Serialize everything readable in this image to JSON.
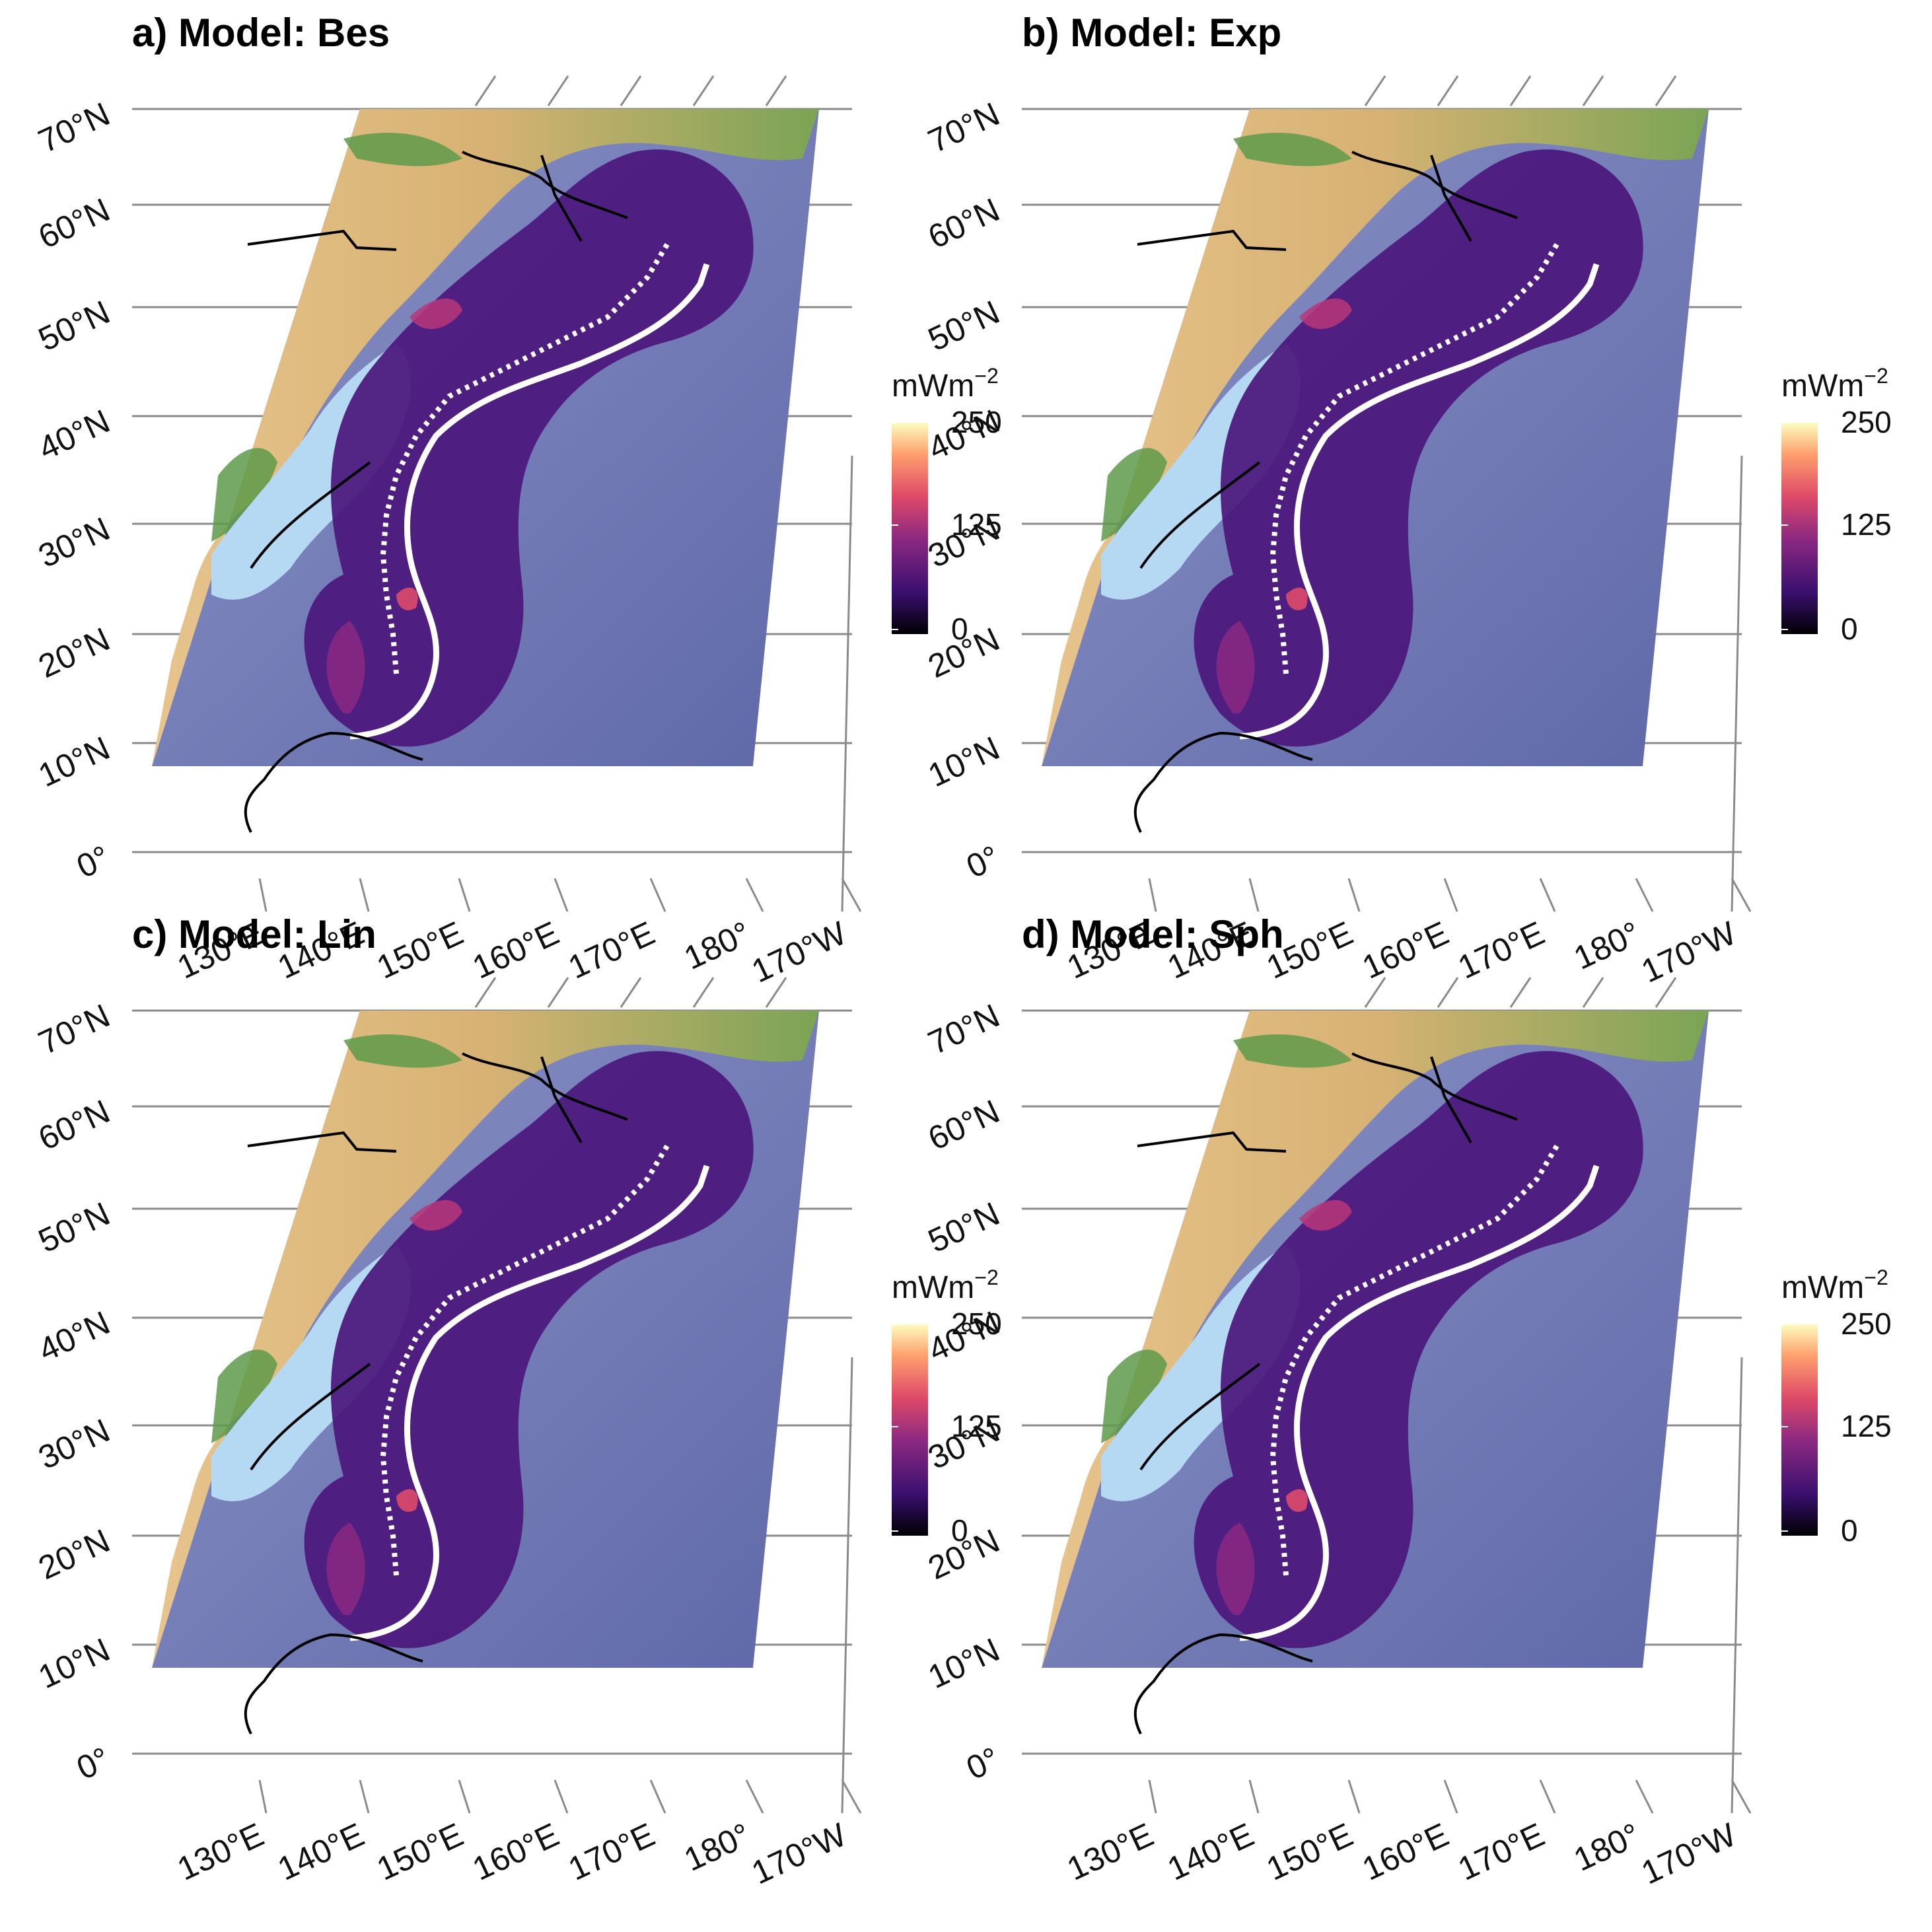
{
  "figure": {
    "panels": [
      {
        "id": "bes",
        "title": "a) Model: Bes"
      },
      {
        "id": "exp",
        "title": "b) Model: Exp"
      },
      {
        "id": "lin",
        "title": "c) Model: Lin"
      },
      {
        "id": "sph",
        "title": "d) Model: Sph"
      }
    ],
    "lat_labels": [
      "0°",
      "10°N",
      "20°N",
      "30°N",
      "40°N",
      "50°N",
      "60°N",
      "70°N"
    ],
    "lon_labels": [
      "130°E",
      "140°E",
      "150°E",
      "160°E",
      "170°E",
      "180°",
      "170°W"
    ],
    "colorbar": {
      "title_main": "mWm",
      "title_sup": "−2",
      "ticks": [
        "250",
        "125",
        "0"
      ],
      "palette": [
        "#000004",
        "#3b0f70",
        "#8c2981",
        "#de4968",
        "#fe9f6d",
        "#fcfdbf"
      ]
    },
    "map_colors": {
      "ocean_deep": "#6a74b0",
      "ocean_shallow": "#b5d9f2",
      "land_low": "#5e9a4a",
      "land_high": "#e9c98f",
      "subduction_line": "#ffffff",
      "plate_boundary": "#000000"
    }
  }
}
